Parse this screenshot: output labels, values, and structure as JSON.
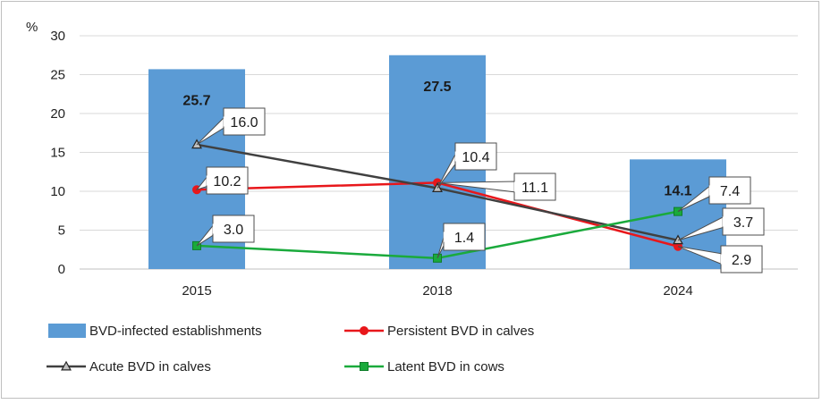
{
  "chart_data": {
    "type": "bar",
    "unit_label": "%",
    "categories": [
      "2015",
      "2018",
      "2024"
    ],
    "ylim": [
      0,
      30
    ],
    "yticks": [
      0,
      5,
      10,
      15,
      20,
      25,
      30
    ],
    "grid": true,
    "legend_position": "bottom",
    "series": [
      {
        "name": "BVD-infected establishments",
        "kind": "bar",
        "color": "#5b9bd5",
        "values": [
          25.7,
          27.5,
          14.1
        ],
        "labels": [
          "25.7",
          "27.5",
          "14.1"
        ]
      },
      {
        "name": "Persistent BVD in calves",
        "kind": "line",
        "marker": "circle",
        "color": "#e8171b",
        "values": [
          10.2,
          11.1,
          2.9
        ],
        "labels": [
          "10.2",
          "11.1",
          "2.9"
        ]
      },
      {
        "name": "Acute BVD in calves",
        "kind": "line",
        "marker": "triangle",
        "color": "#404040",
        "values": [
          16.0,
          10.4,
          3.7
        ],
        "labels": [
          "16.0",
          "10.4",
          "3.7"
        ]
      },
      {
        "name": "Latent BVD in cows",
        "kind": "line",
        "marker": "square",
        "color": "#1aaa3c",
        "values": [
          3.0,
          1.4,
          7.4
        ],
        "labels": [
          "3.0",
          "1.4",
          "7.4"
        ]
      }
    ]
  }
}
